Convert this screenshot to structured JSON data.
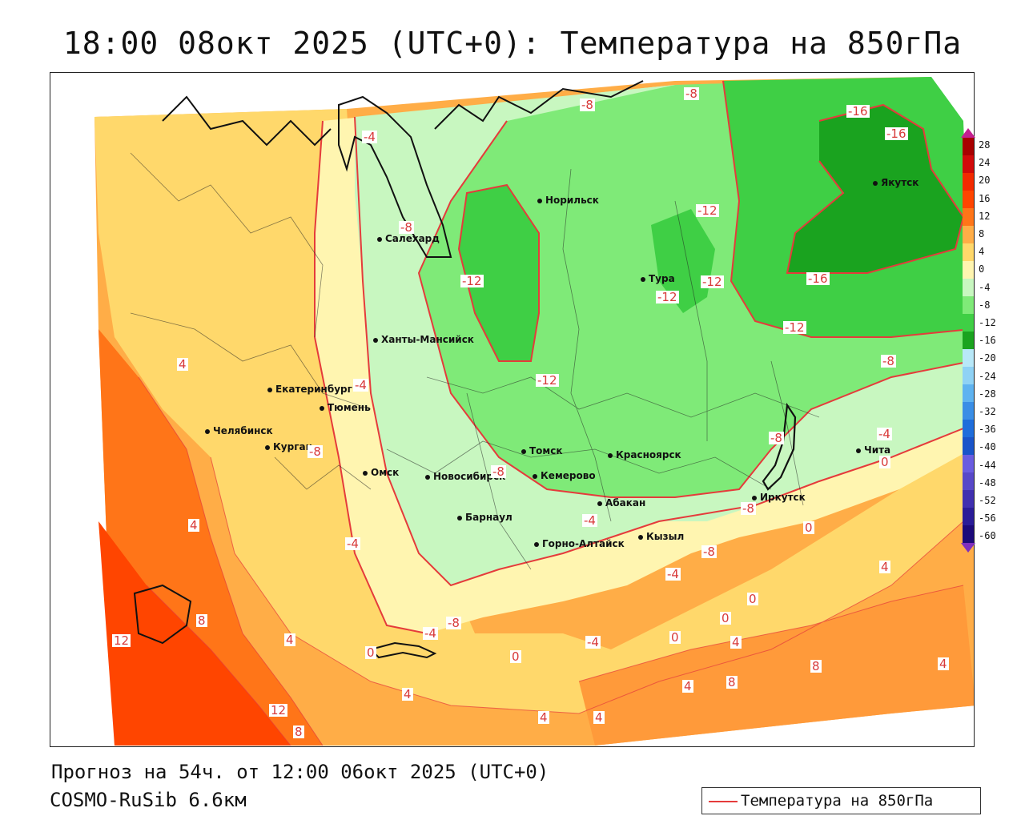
{
  "title": "18:00 08окт 2025 (UTC+0): Температура на 850гПа",
  "forecast_line": "Прогноз на 54ч. от 12:00 06окт 2025 (UTC+0)",
  "model_line": "COSMO-RuSib 6.6км",
  "legend_label": "Температура на 850гПа",
  "colorbar_ticks": [
    "28",
    "24",
    "20",
    "16",
    "12",
    "8",
    "4",
    "0",
    "-4",
    "-8",
    "-12",
    "-16",
    "-20",
    "-24",
    "-28",
    "-32",
    "-36",
    "-40",
    "-44",
    "-48",
    "-52",
    "-56",
    "-60"
  ],
  "cities": [
    {
      "name": "Норильск"
    },
    {
      "name": "Якутск"
    },
    {
      "name": "Салехард"
    },
    {
      "name": "Тура"
    },
    {
      "name": "Ханты-Мансийск"
    },
    {
      "name": "Екатеринбург"
    },
    {
      "name": "Тюмень"
    },
    {
      "name": "Челябинск"
    },
    {
      "name": "Курган"
    },
    {
      "name": "Омск"
    },
    {
      "name": "Новосибирск"
    },
    {
      "name": "Томск"
    },
    {
      "name": "Кемерово"
    },
    {
      "name": "Красноярск"
    },
    {
      "name": "Абакан"
    },
    {
      "name": "Барнаул"
    },
    {
      "name": "Горно-Алтайск"
    },
    {
      "name": "Кызыл"
    },
    {
      "name": "Иркутск"
    },
    {
      "name": "Чита"
    }
  ],
  "contour_labels": [
    "-8",
    "-8",
    "-16",
    "-16",
    "-4",
    "-8",
    "-12",
    "-12",
    "-12",
    "-12",
    "-12",
    "-12",
    "-16",
    "-8",
    "4",
    "-4",
    "-4",
    "0",
    "-8",
    "-4",
    "4",
    "-4",
    "-8",
    "-4",
    "-8",
    "0",
    "-8",
    "-4",
    "-4",
    "-8",
    "-8",
    "0",
    "0",
    "4",
    "8",
    "12",
    "12",
    "8",
    "4",
    "0",
    "4",
    "4",
    "4",
    "0",
    "0",
    "4",
    "8",
    "4",
    "8",
    "4"
  ],
  "colors": {
    "contour": "#e53b3b",
    "warm_8_12": "#ff7518",
    "warm_12_16": "#ff4500",
    "warm_4_8": "#ffad47",
    "warm_0_4": "#ffd86b",
    "cool_0_m4": "#fff5b0",
    "cool_m4_m8": "#c8f7c0",
    "cool_m8_m12": "#7fea78",
    "cool_m12_m16": "#3fcf45",
    "cool_m16_m20": "#1aa31f"
  }
}
